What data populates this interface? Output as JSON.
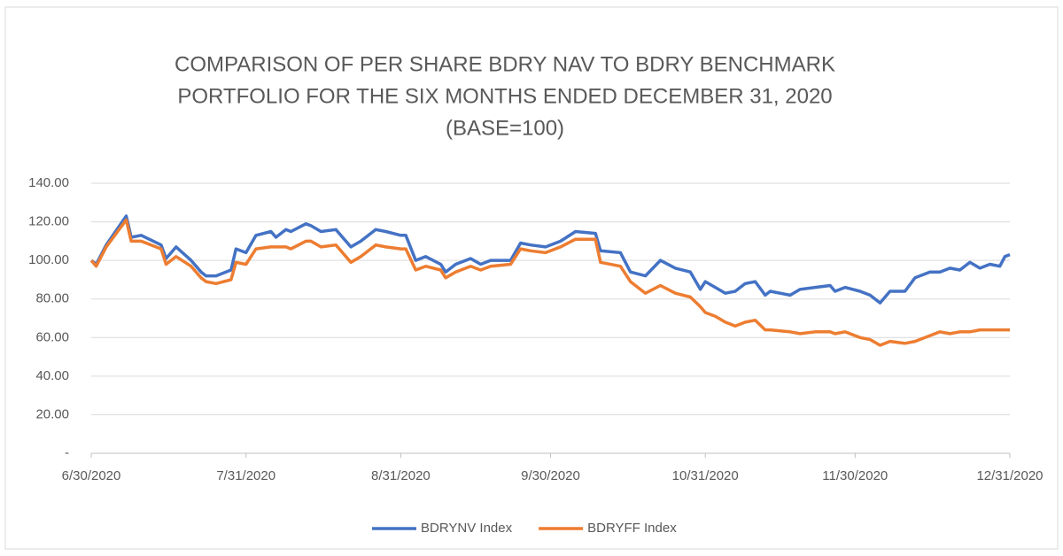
{
  "chart_data": {
    "type": "line",
    "title": [
      "COMPARISON OF PER SHARE BDRY NAV TO BDRY BENCHMARK",
      "PORTFOLIO FOR THE SIX MONTHS ENDED DECEMBER 31, 2020",
      "(BASE=100)"
    ],
    "x": [
      "6/30/2020",
      "7/1/2020",
      "7/3/2020",
      "7/7/2020",
      "7/8/2020",
      "7/10/2020",
      "7/14/2020",
      "7/15/2020",
      "7/17/2020",
      "7/20/2020",
      "7/22/2020",
      "7/23/2020",
      "7/25/2020",
      "7/28/2020",
      "7/29/2020",
      "7/31/2020",
      "8/2/2020",
      "8/5/2020",
      "8/6/2020",
      "8/8/2020",
      "8/9/2020",
      "8/12/2020",
      "8/13/2020",
      "8/15/2020",
      "8/18/2020",
      "8/21/2020",
      "8/23/2020",
      "8/26/2020",
      "8/28/2020",
      "8/31/2020",
      "9/1/2020",
      "9/3/2020",
      "9/5/2020",
      "9/8/2020",
      "9/9/2020",
      "9/11/2020",
      "9/14/2020",
      "9/16/2020",
      "9/18/2020",
      "9/22/2020",
      "9/24/2020",
      "9/26/2020",
      "9/29/2020",
      "10/2/2020",
      "10/5/2020",
      "10/9/2020",
      "10/10/2020",
      "10/14/2020",
      "10/16/2020",
      "10/19/2020",
      "10/22/2020",
      "10/25/2020",
      "10/28/2020",
      "10/30/2020",
      "10/31/2020",
      "11/2/2020",
      "11/4/2020",
      "11/6/2020",
      "11/8/2020",
      "11/10/2020",
      "11/12/2020",
      "11/13/2020",
      "11/17/2020",
      "11/19/2020",
      "11/22/2020",
      "11/25/2020",
      "11/26/2020",
      "11/28/2020",
      "12/1/2020",
      "12/3/2020",
      "12/5/2020",
      "12/7/2020",
      "12/10/2020",
      "12/12/2020",
      "12/15/2020",
      "12/17/2020",
      "12/19/2020",
      "12/21/2020",
      "12/23/2020",
      "12/25/2020",
      "12/27/2020",
      "12/29/2020",
      "12/30/2020",
      "12/31/2020"
    ],
    "series": [
      {
        "name": "BDRYNV Index",
        "color": "#4472c4",
        "values": [
          100,
          98,
          108,
          123,
          112,
          113,
          108,
          101,
          107,
          100,
          94,
          92,
          92,
          95,
          106,
          104,
          113,
          115,
          112,
          116,
          115,
          119,
          118,
          115,
          116,
          107,
          110,
          116,
          115,
          113,
          113,
          100,
          102,
          98,
          94,
          98,
          101,
          98,
          100,
          100,
          109,
          108,
          107,
          110,
          115,
          114,
          105,
          104,
          94,
          92,
          100,
          96,
          94,
          85,
          89,
          86,
          83,
          84,
          88,
          89,
          82,
          84,
          82,
          85,
          86,
          87,
          84,
          86,
          84,
          82,
          78,
          84,
          84,
          91,
          94,
          94,
          96,
          95,
          99,
          96,
          98,
          97,
          102,
          103
        ]
      },
      {
        "name": "BDRYFF Index",
        "color": "#ed7d31",
        "values": [
          100,
          97,
          107,
          121,
          110,
          110,
          106,
          98,
          102,
          97,
          91,
          89,
          88,
          90,
          99,
          98,
          106,
          107,
          107,
          107,
          106,
          110,
          110,
          107,
          108,
          99,
          102,
          108,
          107,
          106,
          106,
          95,
          97,
          95,
          91,
          94,
          97,
          95,
          97,
          98,
          106,
          105,
          104,
          107,
          111,
          111,
          99,
          97,
          89,
          83,
          87,
          83,
          81,
          76,
          73,
          71,
          68,
          66,
          68,
          69,
          64,
          64,
          63,
          62,
          63,
          63,
          62,
          63,
          60,
          59,
          56,
          58,
          57,
          58,
          61,
          63,
          62,
          63,
          63,
          64,
          64,
          64,
          64,
          64
        ]
      }
    ],
    "xlim": [
      "6/30/2020",
      "12/31/2020"
    ],
    "xticks": [
      "6/30/2020",
      "7/31/2020",
      "8/31/2020",
      "9/30/2020",
      "10/31/2020",
      "11/30/2020",
      "12/31/2020"
    ],
    "ylim": [
      0,
      140
    ],
    "yticks": [
      {
        "value": 0,
        "label": "-"
      },
      {
        "value": 20,
        "label": "20.00"
      },
      {
        "value": 40,
        "label": "40.00"
      },
      {
        "value": 60,
        "label": "60.00"
      },
      {
        "value": 80,
        "label": "80.00"
      },
      {
        "value": 100,
        "label": "100.00"
      },
      {
        "value": 120,
        "label": "120.00"
      },
      {
        "value": 140,
        "label": "140.00"
      }
    ],
    "grid": true,
    "legend": "bottom"
  }
}
